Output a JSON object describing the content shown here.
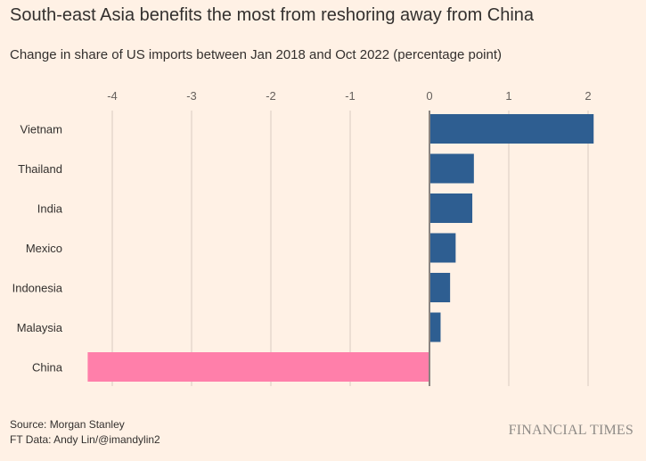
{
  "header": {
    "title": "South-east Asia benefits the most from reshoring away from China",
    "subtitle": "Change in share of US imports between Jan 2018 and Oct 2022 (percentage point)"
  },
  "footer": {
    "source": "Source: Morgan Stanley",
    "credit": "FT Data: Andy Lin/@imandylin2",
    "brand": "FINANCIAL TIMES"
  },
  "colors": {
    "background": "#FFF1E5",
    "positive": "#2E5E91",
    "negative": "#FF7FAA",
    "gridline": "#D9CCC1",
    "zeroline": "#8A8480"
  },
  "chart_data": {
    "type": "bar",
    "orientation": "horizontal",
    "title": "South-east Asia benefits the most from reshoring away from China",
    "subtitle": "Change in share of US imports between Jan 2018 and Oct 2022 (percentage point)",
    "xlabel": "",
    "ylabel": "",
    "xlim": [
      -4.35,
      2.2
    ],
    "xticks": [
      -4,
      -3,
      -2,
      -1,
      0,
      1,
      2
    ],
    "xtick_labels": [
      "-4",
      "-3",
      "-2",
      "-1",
      "0",
      "1",
      "2"
    ],
    "grid": true,
    "categories": [
      "Vietnam",
      "Thailand",
      "India",
      "Mexico",
      "Indonesia",
      "Malaysia",
      "China"
    ],
    "values": [
      2.07,
      0.56,
      0.54,
      0.33,
      0.26,
      0.14,
      -4.31
    ]
  }
}
